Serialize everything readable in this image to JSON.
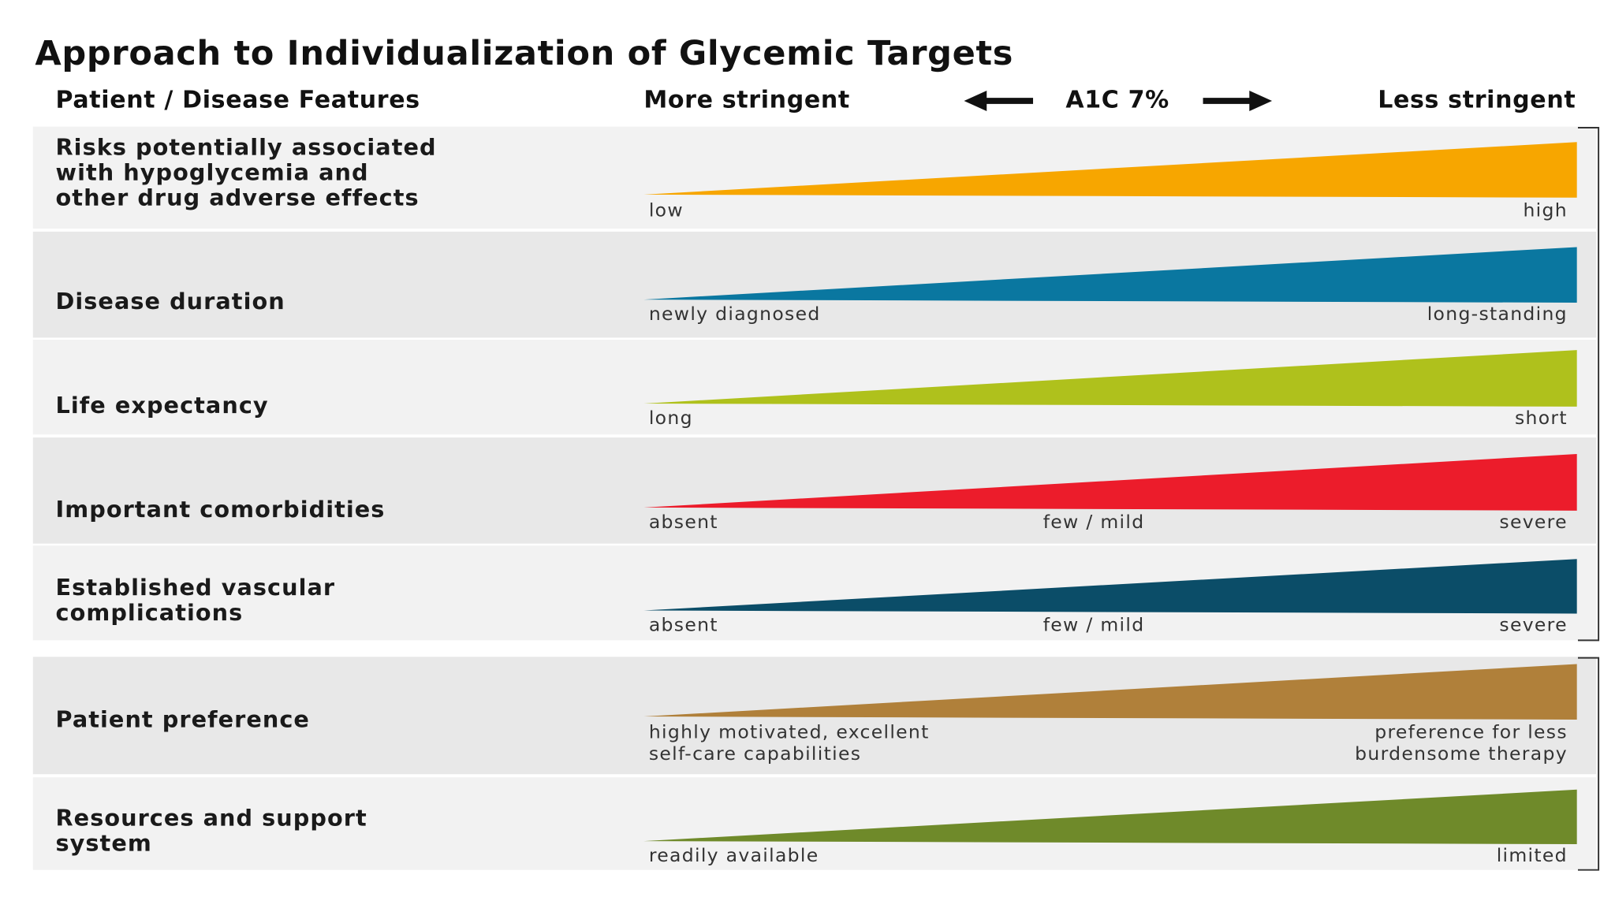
{
  "title": "Approach to Individualization of Glycemic Targets",
  "header": {
    "features": "Patient / Disease Features",
    "more": "More stringent",
    "center": "A1C 7%",
    "less": "Less stringent"
  },
  "rows": [
    {
      "label": [
        "Risks potentially associated",
        "with hypoglycemia and",
        "other drug adverse effects"
      ],
      "color": "#f7a600",
      "low": [
        "low"
      ],
      "high": [
        "high"
      ]
    },
    {
      "label": [
        "Disease duration"
      ],
      "color": "#0a77a0",
      "low": [
        "newly diagnosed"
      ],
      "high": [
        "long-standing"
      ]
    },
    {
      "label": [
        "Life expectancy"
      ],
      "color": "#afc11c",
      "low": [
        "long"
      ],
      "high": [
        "short"
      ]
    },
    {
      "label": [
        "Important comorbidities"
      ],
      "color": "#ec1c2b",
      "low": [
        "absent"
      ],
      "mid": [
        "few / mild"
      ],
      "high": [
        "severe"
      ]
    },
    {
      "label": [
        "Established vascular",
        "complications"
      ],
      "color": "#0b4d68",
      "low": [
        "absent"
      ],
      "mid": [
        "few / mild"
      ],
      "high": [
        "severe"
      ]
    },
    {
      "label": [
        "Patient preference"
      ],
      "color": "#b0803a",
      "low": [
        "highly motivated, excellent",
        "self-care capabilities"
      ],
      "high": [
        "preference for less",
        "burdensome therapy"
      ]
    },
    {
      "label": [
        "Resources and support",
        "system"
      ],
      "color": "#6f8a2a",
      "low": [
        "readily available"
      ],
      "high": [
        "limited"
      ]
    }
  ]
}
